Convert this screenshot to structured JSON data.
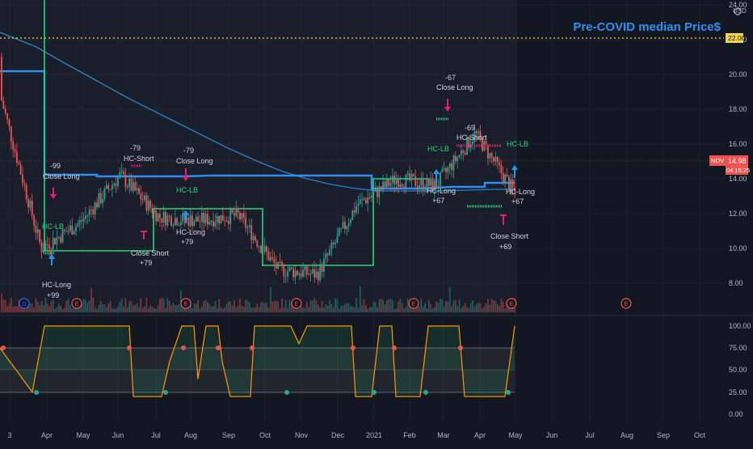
{
  "headline": "Pre-COVID median Price$",
  "price_axis": {
    "currency": "USD",
    "ticks": [
      "24.00",
      "22.00",
      "20.00",
      "18.00",
      "16.00",
      "14.00",
      "12.00",
      "10.00",
      "8.00"
    ],
    "highlight_label": "22.00",
    "last_price": "14.98",
    "countdown": "04:15:25",
    "symbol_tag": "NOV"
  },
  "osc_axis": {
    "ticks": [
      "100.00",
      "75.00",
      "50.00",
      "25.00",
      "0.00"
    ]
  },
  "time_axis": [
    "3",
    "Apr",
    "May",
    "Jun",
    "Jul",
    "Aug",
    "Sep",
    "Oct",
    "Nov",
    "Dec",
    "2021",
    "Feb",
    "Mar",
    "Apr",
    "May",
    "Jun",
    "Jul",
    "Aug",
    "Sep",
    "Oct"
  ],
  "events": [
    "D",
    "E",
    "E",
    "E",
    "E",
    "E",
    "E"
  ],
  "annotations": {
    "hc_long_1": "HC-Long",
    "hc_long_1_val": "+99",
    "minus99": "-99",
    "close_long_1": "Close Long",
    "hc_lb_1": "HC-LB",
    "minus79a": "-79",
    "hc_short_1": "HC-Short",
    "close_short_1": "Close Short",
    "plus79a": "+79",
    "minus79b": "-79",
    "close_long_2": "Close Long",
    "hc_lb_2": "HC-LB",
    "hc_long_2": "HC-Long",
    "plus79b": "+79",
    "minus67": "-67",
    "close_long_3": "Close Long",
    "hc_lb_3": "HC-LB",
    "minus69": "-69",
    "hc_short_2": "HC-Short",
    "hc_long_3": "HC-Long",
    "plus67a": "+67",
    "hc_lb_4": "HC-LB",
    "hc_long_4": "HC-Long",
    "plus67b": "+67",
    "close_short_2": "Close Short",
    "plus69": "+69"
  },
  "colors": {
    "background": "#131722",
    "up": "#26a69a",
    "down": "#ef5350",
    "ma": "#2b82c9",
    "median_line": "#f0d44a",
    "headline": "#2f8ff0",
    "level_line": "#2bd47a",
    "short_marker": "#e91e63",
    "long_marker": "#2196f3"
  },
  "chart_data": [
    {
      "type": "candlestick",
      "title": "Pre-COVID median Price$",
      "ylim": [
        7,
        24
      ],
      "x": [
        "Mar",
        "Apr",
        "May",
        "Jun",
        "Jul",
        "Aug",
        "Sep",
        "Oct",
        "Nov",
        "Dec",
        "Jan 2021",
        "Feb",
        "Mar",
        "Apr"
      ],
      "series": [
        {
          "name": "",
          "values": [
            18.5,
            10.0,
            11.5,
            14.2,
            11.8,
            11.6,
            11.9,
            8.8,
            8.5,
            12.5,
            14.0,
            13.6,
            16.6,
            13.2
          ]
        }
      ],
      "reference_lines": [
        {
          "value": 22.0,
          "label": "22.00"
        }
      ],
      "last_value": 14.98
    },
    {
      "type": "area",
      "ylim": [
        0,
        100
      ],
      "levels": [
        75,
        50,
        25
      ]
    }
  ]
}
